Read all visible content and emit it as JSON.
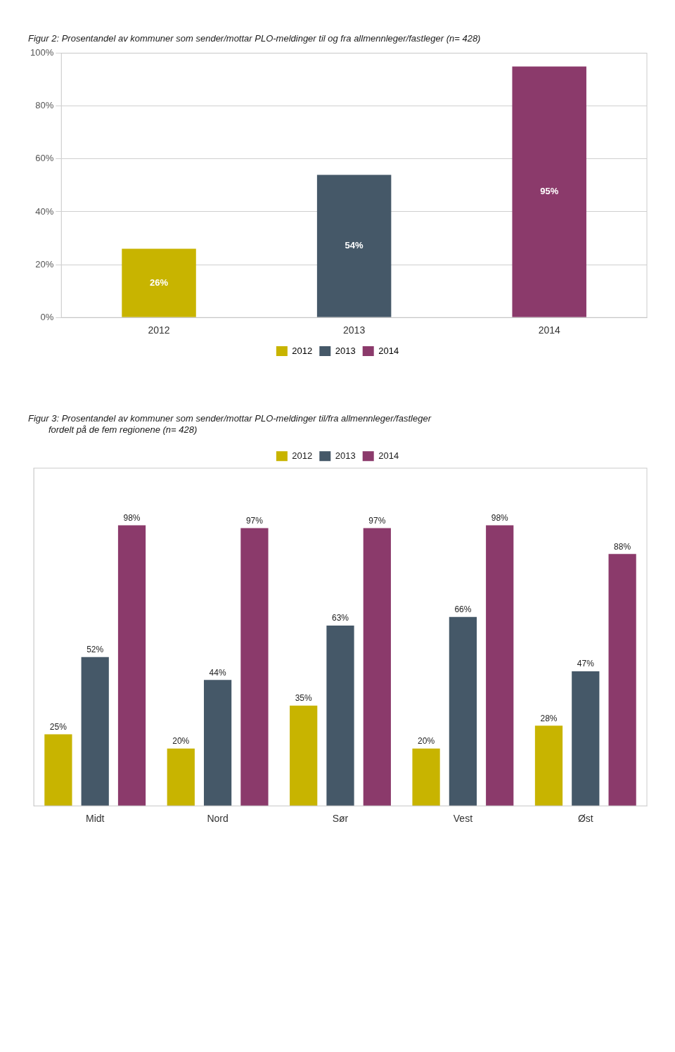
{
  "chart_data": [
    {
      "type": "bar",
      "title": "Figur 2: Prosentandel av kommuner som sender/mottar PLO-meldinger til og fra allmennleger/fastleger (n= 428)",
      "categories": [
        "2012",
        "2013",
        "2014"
      ],
      "values": [
        26,
        54,
        95
      ],
      "value_labels": [
        "26%",
        "54%",
        "95%"
      ],
      "colors": [
        "#c8b400",
        "#455868",
        "#8b3a6b"
      ],
      "ylim": [
        0,
        100
      ],
      "yticks": [
        {
          "value": 0,
          "label": "0%"
        },
        {
          "value": 20,
          "label": "20%"
        },
        {
          "value": 40,
          "label": "40%"
        },
        {
          "value": 60,
          "label": "60%"
        },
        {
          "value": 80,
          "label": "80%"
        },
        {
          "value": 100,
          "label": "100%"
        }
      ],
      "grid": true,
      "legend": "bottom",
      "data_labels": true
    },
    {
      "type": "bar",
      "title": [
        "Figur 3: Prosentandel av kommuner som sender/mottar PLO-meldinger til/fra allmennleger/fastleger",
        "        fordelt på de fem regionene (n= 428)"
      ],
      "categories": [
        "Midt",
        "Nord",
        "Sør",
        "Vest",
        "Øst"
      ],
      "series": [
        {
          "name": "2012",
          "color": "#c8b400",
          "values": [
            25,
            20,
            35,
            20,
            28
          ],
          "value_labels": [
            "25%",
            "20%",
            "35%",
            "20%",
            "28%"
          ]
        },
        {
          "name": "2013",
          "color": "#455868",
          "values": [
            52,
            44,
            63,
            66,
            47
          ],
          "value_labels": [
            "52%",
            "44%",
            "63%",
            "66%",
            "47%"
          ]
        },
        {
          "name": "2014",
          "color": "#8b3a6b",
          "values": [
            98,
            97,
            97,
            98,
            88
          ],
          "value_labels": [
            "98%",
            "97%",
            "97%",
            "98%",
            "88%"
          ]
        }
      ],
      "ylim": [
        0,
        118
      ],
      "grid": false,
      "legend": "top",
      "tick_labels": "x",
      "data_labels": true
    }
  ]
}
